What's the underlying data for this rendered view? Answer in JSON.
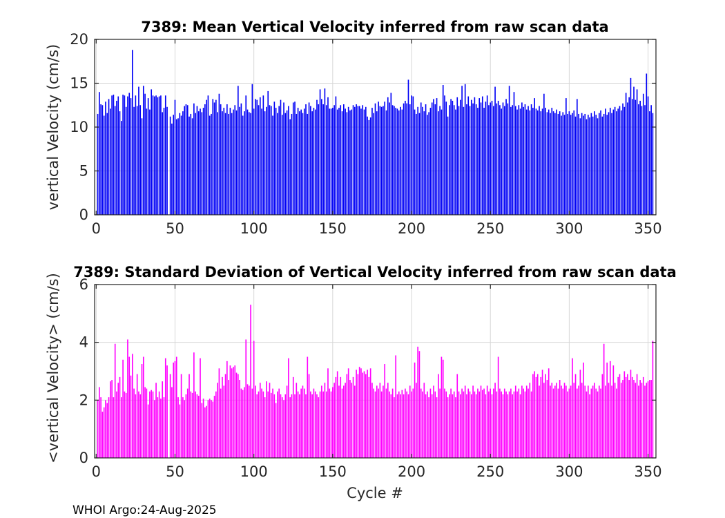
{
  "figure": {
    "footer": "WHOI Argo:24-Aug-2025",
    "background": "#ffffff"
  },
  "chart_data": [
    {
      "id": "mean-vertical-velocity",
      "type": "bar",
      "title": "7389: Mean Vertical Velocity inferred from raw scan data",
      "xlabel": "",
      "ylabel": "vertical Velocity (cm/s)",
      "bar_color": "#0000f5",
      "grid": true,
      "x_start": 1,
      "xlim": [
        -1,
        355
      ],
      "ylim": [
        0,
        20
      ],
      "xticks": [
        0,
        50,
        100,
        150,
        200,
        250,
        300,
        350
      ],
      "yticks": [
        0,
        5,
        10,
        15,
        20
      ],
      "values": [
        11.5,
        14.0,
        12.6,
        12.5,
        11.3,
        12.9,
        11.6,
        13.2,
        12.1,
        13.6,
        13.7,
        12.4,
        13.0,
        13.5,
        11.8,
        10.7,
        13.7,
        13.6,
        12.3,
        13.5,
        13.9,
        13.3,
        18.8,
        12.3,
        13.6,
        12.4,
        14.6,
        12.5,
        11.0,
        14.7,
        13.8,
        12.1,
        13.3,
        12.0,
        14.3,
        13.6,
        13.5,
        13.6,
        13.4,
        13.5,
        13.6,
        11.7,
        12.2,
        13.6,
        12.3,
        0,
        11.2,
        10.4,
        11.4,
        13.1,
        10.9,
        11.0,
        11.6,
        11.3,
        11.8,
        12.4,
        12.6,
        12.5,
        11.2,
        11.5,
        11.0,
        12.7,
        11.6,
        12.4,
        11.8,
        12.1,
        11.7,
        12.2,
        12.6,
        13.1,
        13.6,
        11.3,
        11.5,
        13.2,
        12.8,
        13.1,
        11.7,
        13.8,
        12.6,
        11.8,
        12.2,
        11.6,
        12.6,
        11.5,
        12.2,
        11.6,
        12.0,
        12.5,
        11.9,
        14.7,
        12.3,
        12.7,
        11.3,
        11.8,
        13.6,
        12.0,
        11.7,
        11.6,
        14.9,
        12.1,
        13.2,
        13.1,
        12.5,
        13.4,
        12.1,
        13.6,
        11.8,
        12.3,
        14.1,
        12.5,
        12.4,
        11.3,
        12.9,
        12.2,
        11.6,
        12.4,
        13.1,
        11.4,
        12.8,
        11.6,
        11.9,
        12.4,
        10.9,
        11.5,
        12.8,
        12.9,
        11.5,
        12.2,
        11.8,
        12.0,
        11.6,
        12.1,
        12.6,
        11.5,
        12.8,
        12.4,
        11.8,
        12.2,
        12.0,
        13.1,
        12.6,
        14.3,
        13.2,
        12.6,
        14.4,
        12.5,
        13.4,
        12.1,
        12.1,
        12.2,
        12.5,
        13.5,
        12.0,
        12.2,
        12.5,
        11.8,
        12.6,
        12.1,
        11.7,
        12.3,
        11.9,
        12.0,
        12.5,
        12.3,
        12.6,
        12.4,
        12.4,
        12.1,
        12.5,
        12.0,
        12.3,
        11.2,
        10.8,
        11.1,
        12.2,
        11.6,
        12.7,
        11.8,
        12.9,
        12.4,
        12.3,
        12.4,
        12.9,
        11.9,
        13.4,
        12.8,
        13.9,
        12.5,
        12.4,
        12.2,
        12.1,
        11.9,
        12.3,
        12.0,
        12.7,
        13.0,
        12.7,
        15.4,
        12.6,
        13.6,
        13.5,
        12.0,
        11.5,
        12.3,
        11.6,
        12.8,
        12.3,
        11.8,
        12.6,
        11.4,
        11.7,
        12.2,
        12.8,
        13.2,
        12.6,
        13.3,
        11.8,
        12.4,
        12.0,
        14.8,
        13.6,
        12.9,
        11.2,
        12.5,
        13.2,
        13.0,
        12.5,
        12.0,
        13.4,
        12.4,
        13.1,
        14.7,
        12.3,
        14.9,
        12.6,
        13.5,
        12.4,
        13.1,
        12.7,
        13.4,
        12.6,
        12.2,
        13.3,
        12.8,
        13.5,
        12.2,
        12.9,
        13.6,
        12.5,
        12.8,
        13.0,
        12.4,
        14.6,
        12.7,
        13.0,
        12.5,
        12.1,
        12.8,
        12.4,
        13.2,
        12.7,
        14.7,
        12.3,
        12.5,
        14.0,
        12.4,
        12.0,
        12.5,
        12.1,
        12.8,
        12.3,
        12.6,
        12.0,
        12.4,
        11.9,
        12.6,
        12.2,
        13.3,
        12.1,
        11.9,
        12.4,
        11.8,
        12.1,
        13.8,
        12.2,
        11.7,
        12.0,
        11.6,
        12.2,
        11.8,
        11.6,
        12.0,
        11.5,
        11.8,
        11.3,
        11.7,
        11.4,
        13.3,
        11.5,
        11.8,
        11.4,
        11.6,
        11.9,
        11.2,
        13.2,
        11.5,
        11.0,
        11.6,
        11.3,
        11.5,
        10.9,
        11.4,
        11.1,
        11.6,
        11.2,
        11.8,
        11.4,
        11.0,
        11.6,
        11.9,
        11.2,
        11.5,
        12.1,
        11.4,
        11.7,
        12.2,
        11.6,
        12.0,
        12.3,
        11.8,
        12.1,
        12.4,
        11.9,
        12.7,
        12.3,
        13.9,
        12.8,
        13.4,
        15.6,
        13.2,
        14.6,
        13.1,
        14.3,
        12.6,
        13.0,
        12.4,
        13.8,
        12.5,
        16.1,
        13.5,
        11.8,
        12.5,
        11.6
      ]
    },
    {
      "id": "std-vertical-velocity",
      "type": "bar",
      "title": "7389: Standard Deviation of Vertical Velocity inferred from raw scan data",
      "xlabel": "Cycle #",
      "ylabel": "<vertical Velocity> (cm/s)",
      "bar_color": "#ff00ff",
      "grid": true,
      "x_start": 1,
      "xlim": [
        -1,
        355
      ],
      "ylim": [
        0,
        6
      ],
      "xticks": [
        0,
        50,
        100,
        150,
        200,
        250,
        300,
        350
      ],
      "yticks": [
        0,
        2,
        4,
        6
      ],
      "values": [
        2.0,
        2.45,
        2.1,
        1.6,
        1.75,
        2.0,
        1.9,
        2.1,
        2.65,
        2.7,
        2.1,
        3.95,
        2.3,
        2.6,
        2.8,
        2.1,
        3.4,
        2.3,
        2.25,
        4.1,
        3.5,
        2.85,
        3.6,
        2.4,
        2.2,
        2.9,
        2.3,
        2.2,
        3.25,
        3.5,
        2.45,
        2.4,
        1.85,
        2.3,
        2.35,
        2.3,
        2.0,
        2.6,
        2.1,
        2.3,
        2.05,
        2.65,
        2.1,
        3.45,
        3.2,
        0,
        2.9,
        2.45,
        3.3,
        3.35,
        3.5,
        2.1,
        1.85,
        2.9,
        2.1,
        2.0,
        2.2,
        2.4,
        2.9,
        2.3,
        2.25,
        3.65,
        2.3,
        2.2,
        2.15,
        3.45,
        1.9,
        2.05,
        1.75,
        1.8,
        2.0,
        2.05,
        2.0,
        1.95,
        2.15,
        2.3,
        2.6,
        3.1,
        2.4,
        2.8,
        2.5,
        2.9,
        3.35,
        2.7,
        3.2,
        3.1,
        3.15,
        3.2,
        2.95,
        2.9,
        2.7,
        2.4,
        2.35,
        2.45,
        4.1,
        2.55,
        2.5,
        5.3,
        2.4,
        4.05,
        2.5,
        2.2,
        2.3,
        2.6,
        2.4,
        2.3,
        2.1,
        2.65,
        2.3,
        2.6,
        2.25,
        2.4,
        2.2,
        1.9,
        2.3,
        2.4,
        2.2,
        2.1,
        2.0,
        2.2,
        2.5,
        3.45,
        2.1,
        2.2,
        2.8,
        2.2,
        2.6,
        2.3,
        2.2,
        2.4,
        2.5,
        2.4,
        2.2,
        3.5,
        2.9,
        2.3,
        2.2,
        2.4,
        2.3,
        2.2,
        2.1,
        2.3,
        2.5,
        2.3,
        2.6,
        2.3,
        3.1,
        2.4,
        2.3,
        2.45,
        2.6,
        2.8,
        3.0,
        2.5,
        2.8,
        2.4,
        2.5,
        2.6,
        2.9,
        3.1,
        2.7,
        2.6,
        2.8,
        2.5,
        3.05,
        2.9,
        3.15,
        3.1,
        2.95,
        3.0,
        2.9,
        3.05,
        2.8,
        3.1,
        2.6,
        2.4,
        2.3,
        2.5,
        2.4,
        2.6,
        2.3,
        2.5,
        3.25,
        2.4,
        2.6,
        2.3,
        2.2,
        2.4,
        2.1,
        3.55,
        2.2,
        2.3,
        2.2,
        2.35,
        2.2,
        2.4,
        2.3,
        2.2,
        2.5,
        2.3,
        2.4,
        3.3,
        2.6,
        3.85,
        3.7,
        2.4,
        2.3,
        2.6,
        2.2,
        2.3,
        2.1,
        2.4,
        2.2,
        2.5,
        2.3,
        2.1,
        2.9,
        2.4,
        3.5,
        3.4,
        2.4,
        2.3,
        2.1,
        2.2,
        2.4,
        2.2,
        2.3,
        2.1,
        2.9,
        2.3,
        2.2,
        2.4,
        2.3,
        2.5,
        2.2,
        2.4,
        2.3,
        2.2,
        2.5,
        2.3,
        2.2,
        2.4,
        2.3,
        2.5,
        2.35,
        2.4,
        2.2,
        2.5,
        2.3,
        2.4,
        2.2,
        2.4,
        2.6,
        2.3,
        3.5,
        2.4,
        2.3,
        2.2,
        2.4,
        2.3,
        2.2,
        2.3,
        2.4,
        2.2,
        2.3,
        2.5,
        2.3,
        2.4,
        2.2,
        2.5,
        2.4,
        2.3,
        2.5,
        2.4,
        2.6,
        2.3,
        2.9,
        3.0,
        2.8,
        2.9,
        2.5,
        2.8,
        3.05,
        2.6,
        2.9,
        2.7,
        3.1,
        2.5,
        2.6,
        2.4,
        2.5,
        2.6,
        2.4,
        2.7,
        2.5,
        2.4,
        2.6,
        2.5,
        2.3,
        2.4,
        2.5,
        3.45,
        2.6,
        2.9,
        2.4,
        2.5,
        3.05,
        2.6,
        3.3,
        2.5,
        2.3,
        2.5,
        2.2,
        2.4,
        2.5,
        2.6,
        2.4,
        2.3,
        2.5,
        2.4,
        2.9,
        3.95,
        2.5,
        3.3,
        2.6,
        3.35,
        2.5,
        3.2,
        2.6,
        2.4,
        2.8,
        2.9,
        2.6,
        2.7,
        3.0,
        2.8,
        2.9,
        2.7,
        3.05,
        2.8,
        2.7,
        2.6,
        2.9,
        2.5,
        2.7,
        2.6,
        2.8,
        2.5,
        2.6,
        2.65,
        2.7,
        2.7,
        4.05
      ]
    }
  ]
}
